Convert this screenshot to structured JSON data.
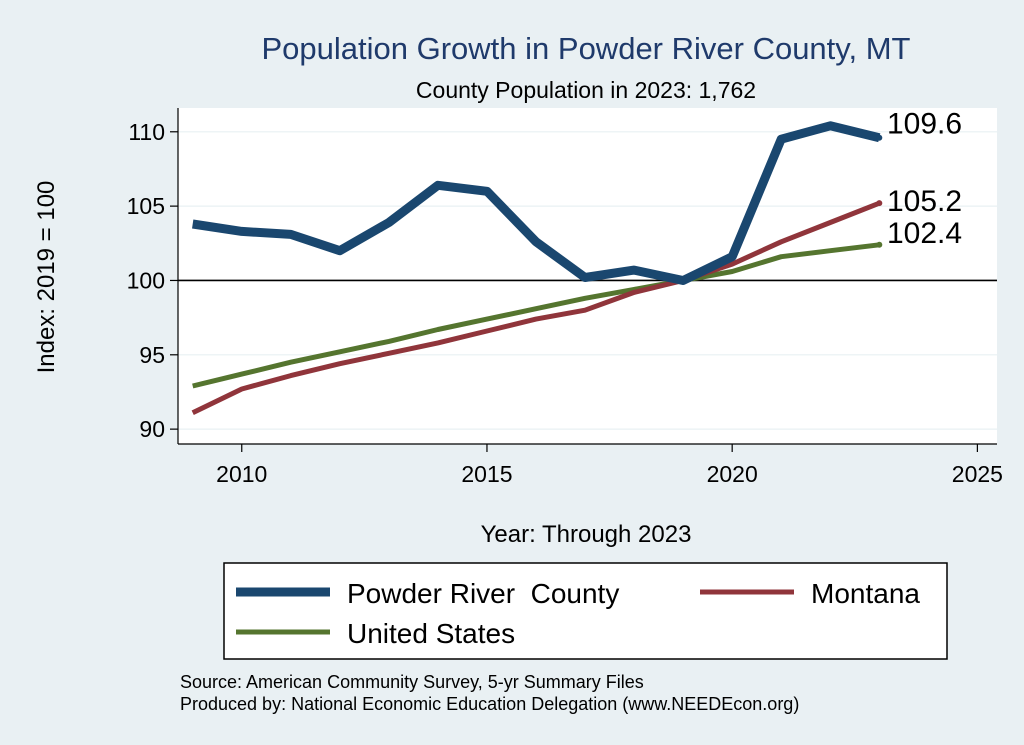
{
  "chart_data": {
    "type": "line",
    "title": "Population Growth in Powder River County, MT",
    "subtitle": "County Population in 2023: 1,762",
    "xlabel": "Year: Through 2023",
    "ylabel": "Index: 2019 = 100",
    "xlim": [
      2008.7,
      2025.4
    ],
    "ylim": [
      89.0,
      111.6
    ],
    "x_ticks": [
      2010,
      2015,
      2020,
      2025
    ],
    "y_ticks": [
      90,
      95,
      100,
      105,
      110
    ],
    "reference_line": 100,
    "grid": true,
    "legend_position": "bottom",
    "x": [
      2009,
      2010,
      2011,
      2012,
      2013,
      2014,
      2015,
      2016,
      2017,
      2018,
      2019,
      2020,
      2021,
      2022,
      2023
    ],
    "series": [
      {
        "name": "Powder River  County",
        "color": "#1a476f",
        "values": [
          103.8,
          103.3,
          103.1,
          102.0,
          103.9,
          106.4,
          106.0,
          102.6,
          100.2,
          100.7,
          100.0,
          101.6,
          109.5,
          110.4,
          109.6
        ],
        "end_label": "109.6"
      },
      {
        "name": "Montana",
        "color": "#90353b",
        "values": [
          91.1,
          92.7,
          93.6,
          94.4,
          95.1,
          95.8,
          96.6,
          97.4,
          98.0,
          99.2,
          100.0,
          101.1,
          102.6,
          103.9,
          105.2
        ],
        "end_label": "105.2"
      },
      {
        "name": "United States",
        "color": "#55752f",
        "values": [
          92.9,
          93.7,
          94.5,
          95.2,
          95.9,
          96.7,
          97.4,
          98.1,
          98.8,
          99.4,
          100.0,
          100.6,
          101.6,
          102.0,
          102.4
        ],
        "end_label": "102.4"
      }
    ],
    "notes": [
      "Source: American Community Survey, 5-yr Summary Files",
      "Produced by: National Economic Education Delegation (www.NEEDEcon.org)"
    ]
  }
}
